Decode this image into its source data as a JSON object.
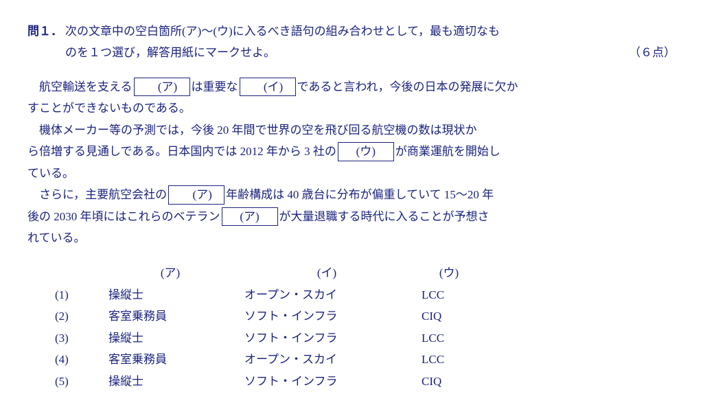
{
  "question": {
    "number": "問１．",
    "prompt_line1": "次の文章中の空白箇所(ア)～(ウ)に入るべき語句の組み合わせとして，最も適切なも",
    "prompt_line2_left": "のを１つ選び，解答用紙にマークせよ。",
    "points": "（６点）"
  },
  "blanks": {
    "a": "(ア)",
    "i": "(イ)",
    "u": "(ウ)"
  },
  "passage": {
    "p1_a": "航空輸送を支える",
    "p1_b": "は重要な",
    "p1_c": "であると言われ，今後の日本の発展に欠か",
    "p1_d": "すことができないものである。",
    "p2_a": "機体メーカー等の予測では，今後 20 年間で世界の空を飛び回る航空機の数は現状か",
    "p2_b": "ら倍増する見通しである。日本国内では 2012 年から 3 社の",
    "p2_c": "が商業運航を開始し",
    "p2_d": "ている。",
    "p3_a": "さらに，主要航空会社の",
    "p3_b": "年齢構成は 40 歳台に分布が偏重していて 15～20 年",
    "p3_c": "後の 2030 年頃にはこれらのベテラン",
    "p3_d": "が大量退職する時代に入ることが予想さ",
    "p3_e": "れている。"
  },
  "options": {
    "headers": {
      "a": "(ア)",
      "i": "(イ)",
      "u": "(ウ)"
    },
    "rows": [
      {
        "n": "(1)",
        "a": "操縦士",
        "i": "オープン・スカイ",
        "u": "LCC"
      },
      {
        "n": "(2)",
        "a": "客室乗務員",
        "i": "ソフト・インフラ",
        "u": "CIQ"
      },
      {
        "n": "(3)",
        "a": "操縦士",
        "i": "ソフト・インフラ",
        "u": "LCC"
      },
      {
        "n": "(4)",
        "a": "客室乗務員",
        "i": "オープン・スカイ",
        "u": "LCC"
      },
      {
        "n": "(5)",
        "a": "操縦士",
        "i": "ソフト・インフラ",
        "u": "CIQ"
      }
    ]
  }
}
